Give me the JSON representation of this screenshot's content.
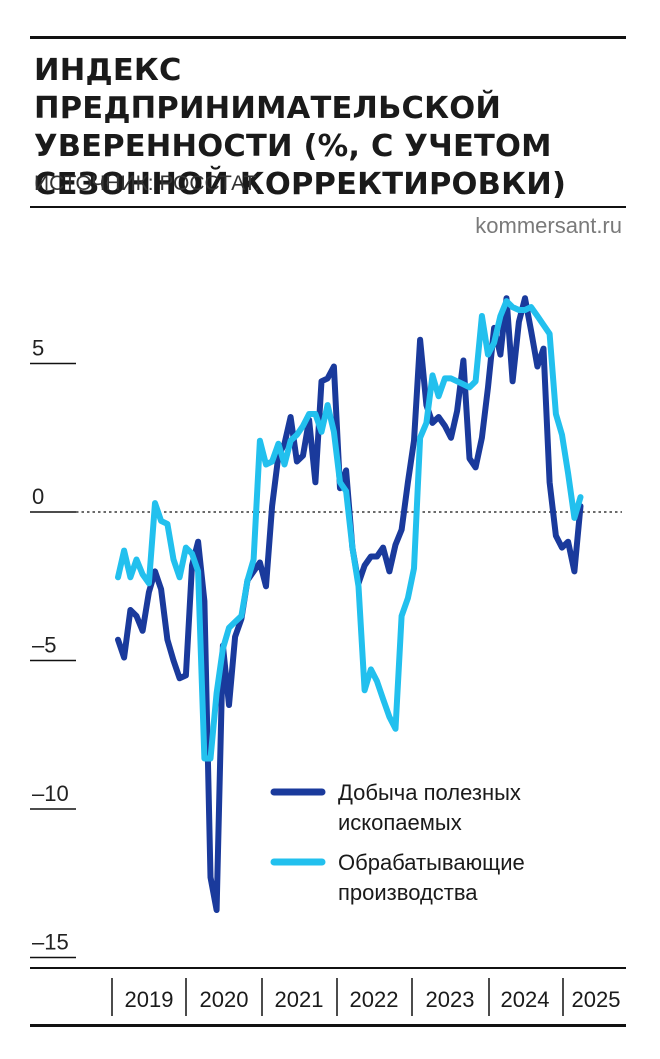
{
  "header": {
    "title_lines": [
      "ИНДЕКС ПРЕДПРИНИМАТЕЛЬСКОЙ",
      "УВЕРЕННОСТИ (%, С УЧЕТОМ",
      "СЕЗОННОЙ КОРРЕКТИРОВКИ)"
    ],
    "source": "ИСТОЧНИК: РОССТАТ.",
    "brand": "kommersant.ru"
  },
  "chart_data": {
    "type": "line",
    "title": "ИНДЕКС ПРЕДПРИНИМАТЕЛЬСКОЙ УВЕРЕННОСТИ (%, С УЧЕТОМ СЕЗОННОЙ КОРРЕКТИРОВКИ)",
    "xlabel": "",
    "ylabel": "",
    "ylim": [
      -15,
      8
    ],
    "xlim": [
      2019,
      2025.75
    ],
    "y_ticks": [
      5,
      0,
      -5,
      -10,
      -15
    ],
    "y_tick_labels": [
      "5",
      "0",
      "–5",
      "–10",
      "–15"
    ],
    "zero_line": "dotted",
    "x_ticks": [
      2019,
      2020,
      2021,
      2022,
      2023,
      2024,
      2025
    ],
    "x_tick_labels": [
      "2019",
      "2020",
      "2021",
      "2022",
      "2023",
      "2024",
      "2025"
    ],
    "legend_position": "bottom-right",
    "colors": {
      "mining": "#1a3a9c",
      "manufacturing": "#22c0ee"
    },
    "series": [
      {
        "name": "Добыча полезных ископаемых",
        "name_lines": [
          "Добыча полезных",
          "ископаемых"
        ],
        "color": "#1a3a9c",
        "x": [
          2019.0,
          2019.083,
          2019.167,
          2019.25,
          2019.333,
          2019.417,
          2019.5,
          2019.583,
          2019.667,
          2019.75,
          2019.833,
          2019.917,
          2020.0,
          2020.083,
          2020.167,
          2020.25,
          2020.333,
          2020.417,
          2020.5,
          2020.583,
          2020.667,
          2020.75,
          2020.833,
          2020.917,
          2021.0,
          2021.083,
          2021.167,
          2021.25,
          2021.333,
          2021.417,
          2021.5,
          2021.583,
          2021.667,
          2021.75,
          2021.833,
          2021.917,
          2022.0,
          2022.083,
          2022.167,
          2022.25,
          2022.333,
          2022.417,
          2022.5,
          2022.583,
          2022.667,
          2022.75,
          2022.833,
          2022.917,
          2023.0,
          2023.083,
          2023.167,
          2023.25,
          2023.333,
          2023.417,
          2023.5,
          2023.583,
          2023.667,
          2023.75,
          2023.833,
          2023.917,
          2024.0,
          2024.083,
          2024.167,
          2024.25,
          2024.333,
          2024.417,
          2024.5,
          2024.583,
          2024.667,
          2024.75,
          2024.833,
          2024.917,
          2025.0,
          2025.083,
          2025.167,
          2025.25
        ],
        "y": [
          -4.3,
          -4.9,
          -3.3,
          -3.5,
          -4.0,
          -2.7,
          -2.0,
          -2.6,
          -4.3,
          -5.0,
          -5.6,
          -5.5,
          -1.8,
          -1.0,
          -3.0,
          -12.3,
          -13.4,
          -4.5,
          -6.5,
          -4.2,
          -3.6,
          -2.3,
          -2.0,
          -1.7,
          -2.5,
          0.2,
          1.9,
          2.3,
          3.2,
          1.7,
          1.9,
          3.1,
          1.0,
          4.4,
          4.5,
          4.9,
          0.8,
          1.4,
          -1.2,
          -2.4,
          -1.8,
          -1.5,
          -1.5,
          -1.2,
          -2.0,
          -1.1,
          -0.6,
          1.0,
          2.4,
          5.8,
          3.6,
          3.0,
          3.2,
          2.9,
          2.5,
          3.4,
          5.1,
          1.8,
          1.5,
          2.5,
          4.2,
          6.2,
          5.3,
          7.2,
          4.4,
          6.4,
          7.2,
          6.1,
          4.9,
          5.5,
          1.0,
          -0.8,
          -1.2,
          -1.0,
          -2.0,
          0.2
        ]
      },
      {
        "name": "Обрабатывающие производства",
        "name_lines": [
          "Обрабатывающие",
          "производства"
        ],
        "color": "#22c0ee",
        "x": [
          2019.0,
          2019.083,
          2019.167,
          2019.25,
          2019.333,
          2019.417,
          2019.5,
          2019.583,
          2019.667,
          2019.75,
          2019.833,
          2019.917,
          2020.0,
          2020.083,
          2020.167,
          2020.25,
          2020.333,
          2020.417,
          2020.5,
          2020.583,
          2020.667,
          2020.75,
          2020.833,
          2020.917,
          2021.0,
          2021.083,
          2021.167,
          2021.25,
          2021.333,
          2021.417,
          2021.5,
          2021.583,
          2021.667,
          2021.75,
          2021.833,
          2021.917,
          2022.0,
          2022.083,
          2022.167,
          2022.25,
          2022.333,
          2022.417,
          2022.5,
          2022.583,
          2022.667,
          2022.75,
          2022.833,
          2022.917,
          2023.0,
          2023.083,
          2023.167,
          2023.25,
          2023.333,
          2023.417,
          2023.5,
          2023.583,
          2023.667,
          2023.75,
          2023.833,
          2023.917,
          2024.0,
          2024.083,
          2024.167,
          2024.25,
          2024.333,
          2024.417,
          2024.5,
          2024.583,
          2024.667,
          2024.75,
          2024.833,
          2024.917,
          2025.0,
          2025.083,
          2025.167,
          2025.25
        ],
        "y": [
          -2.2,
          -1.3,
          -2.2,
          -1.6,
          -2.1,
          -2.4,
          0.3,
          -0.3,
          -0.4,
          -1.6,
          -2.2,
          -1.2,
          -1.4,
          -2.0,
          -8.3,
          -8.3,
          -6.1,
          -4.6,
          -3.9,
          -3.7,
          -3.5,
          -2.3,
          -1.6,
          2.4,
          1.6,
          1.7,
          2.3,
          1.6,
          2.4,
          2.6,
          2.9,
          3.3,
          3.3,
          2.7,
          3.6,
          2.7,
          1.0,
          0.7,
          -1.2,
          -2.5,
          -6.0,
          -5.3,
          -5.7,
          -6.3,
          -6.9,
          -7.3,
          -3.5,
          -2.9,
          -1.9,
          2.5,
          3.0,
          4.6,
          3.9,
          4.5,
          4.5,
          4.4,
          4.3,
          4.2,
          4.4,
          6.6,
          5.3,
          5.7,
          6.6,
          7.1,
          6.9,
          6.8,
          6.8,
          6.9,
          6.6,
          6.3,
          6.0,
          3.3,
          2.6,
          1.3,
          -0.2,
          0.5
        ]
      }
    ]
  }
}
